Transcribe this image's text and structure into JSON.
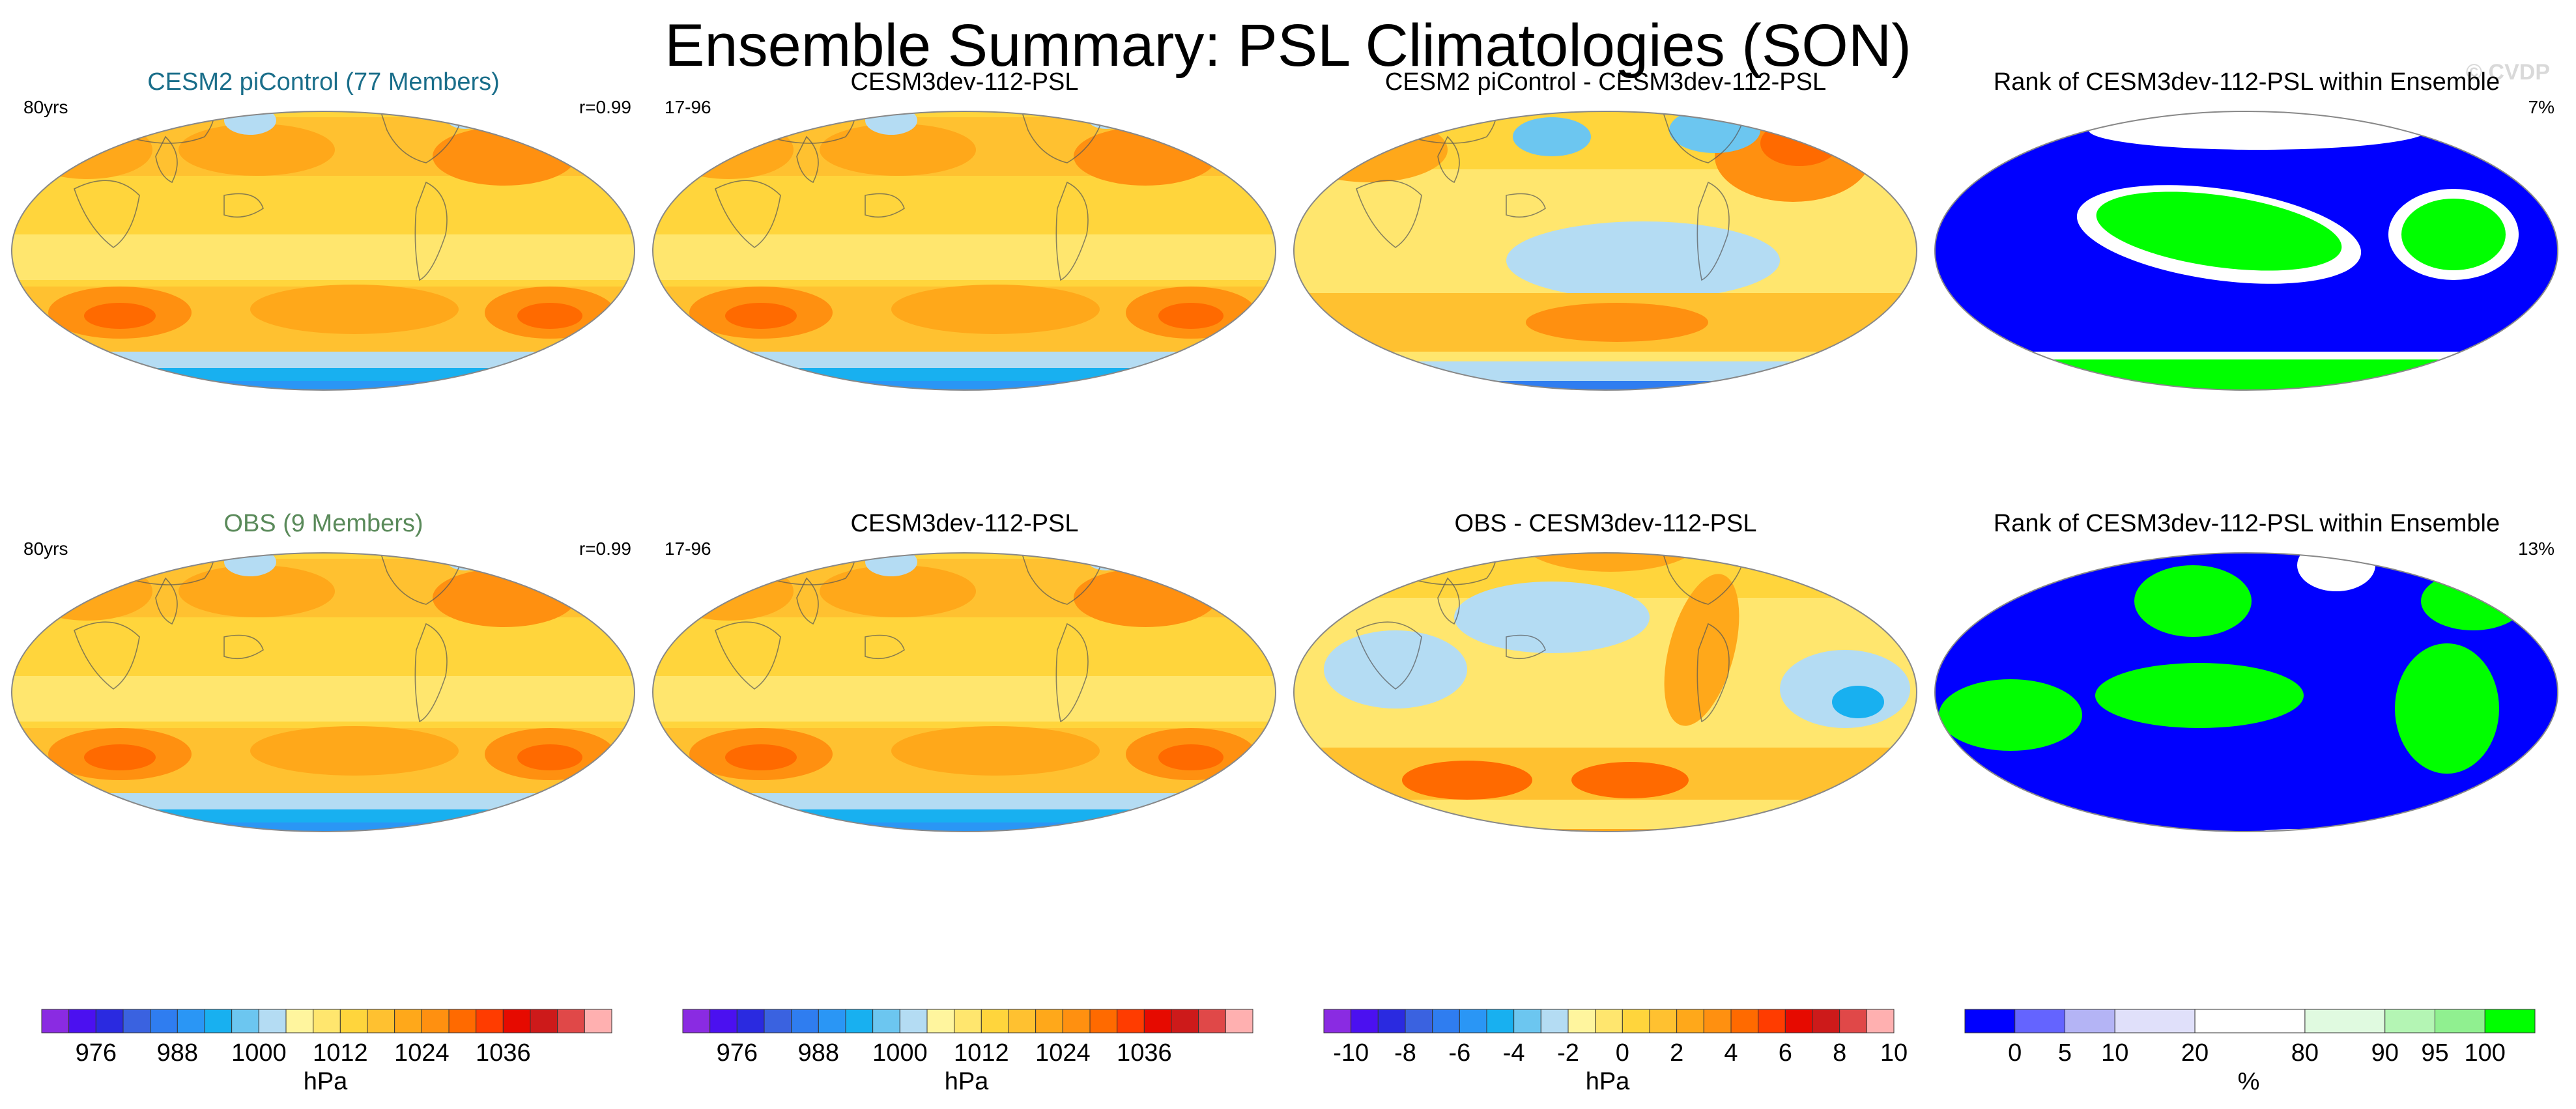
{
  "title": "Ensemble Summary: PSL Climatologies (SON)",
  "watermark": "© CVDP",
  "panels": [
    {
      "title": "CESM2 piControl (77 Members)",
      "title_color": "#1a6e8a",
      "left_note": "80yrs",
      "right_note": "r=0.99",
      "map_type": "abs",
      "variant": 1
    },
    {
      "title": "CESM3dev-112-PSL",
      "title_color": "#000000",
      "left_note": "17-96",
      "right_note": "",
      "map_type": "abs",
      "variant": 2
    },
    {
      "title": "CESM2 piControl - CESM3dev-112-PSL",
      "title_color": "#000000",
      "left_note": "",
      "right_note": "",
      "map_type": "diff",
      "variant": 1
    },
    {
      "title": "Rank of CESM3dev-112-PSL within Ensemble",
      "title_color": "#000000",
      "left_note": "",
      "right_note": "7%",
      "map_type": "rank",
      "variant": 1
    },
    {
      "title": "OBS (9 Members)",
      "title_color": "#5a8a5a",
      "left_note": "80yrs",
      "right_note": "r=0.99",
      "map_type": "abs",
      "variant": 3
    },
    {
      "title": "CESM3dev-112-PSL",
      "title_color": "#000000",
      "left_note": "17-96",
      "right_note": "",
      "map_type": "abs",
      "variant": 4
    },
    {
      "title": "OBS - CESM3dev-112-PSL",
      "title_color": "#000000",
      "left_note": "",
      "right_note": "",
      "map_type": "diff",
      "variant": 2
    },
    {
      "title": "Rank of CESM3dev-112-PSL within Ensemble",
      "title_color": "#000000",
      "left_note": "",
      "right_note": "13%",
      "map_type": "rank",
      "variant": 2
    }
  ],
  "colorbars": [
    {
      "ticks": [
        "976",
        "988",
        "1000",
        "1012",
        "1024",
        "1036"
      ],
      "unit": "hPa",
      "palette": "abs"
    },
    {
      "ticks": [
        "976",
        "988",
        "1000",
        "1012",
        "1024",
        "1036"
      ],
      "unit": "hPa",
      "palette": "abs"
    },
    {
      "ticks": [
        "-10",
        "-8",
        "-6",
        "-4",
        "-2",
        "0",
        "2",
        "4",
        "6",
        "8",
        "10"
      ],
      "unit": "hPa",
      "palette": "diff"
    },
    {
      "ticks": [
        "0",
        "5",
        "10",
        "20",
        "80",
        "90",
        "95",
        "100"
      ],
      "unit": "%",
      "palette": "rank"
    }
  ],
  "chart_data": {
    "type": "heatmap",
    "title": "Ensemble Summary: PSL Climatologies (SON)",
    "variable": "PSL",
    "season": "SON",
    "units": "hPa",
    "absolute_levels": [
      968,
      972,
      976,
      980,
      984,
      988,
      992,
      996,
      1000,
      1004,
      1008,
      1012,
      1016,
      1020,
      1024,
      1028,
      1032,
      1036,
      1040,
      1044
    ],
    "difference_levels": [
      -10,
      -9,
      -8,
      -7,
      -6,
      -5,
      -4,
      -3,
      -2,
      -1,
      0,
      1,
      2,
      3,
      4,
      5,
      6,
      7,
      8,
      9,
      10
    ],
    "rank_levels_percent": [
      0,
      5,
      10,
      20,
      80,
      90,
      95,
      100
    ],
    "pattern_correlation": [
      0.99,
      0.99
    ],
    "rank_percentile": [
      7,
      13
    ],
    "colors": {
      "abs": [
        "#8a2be2",
        "#4b10f0",
        "#2a2ae0",
        "#3a62e0",
        "#2f7df0",
        "#2a96f5",
        "#18b0f0",
        "#6cc6f0",
        "#b4dcf3",
        "#fff59e",
        "#ffe66e",
        "#ffd53c",
        "#ffc130",
        "#ffa81a",
        "#ff9010",
        "#ff6a00",
        "#ff3c00",
        "#e60a00",
        "#cd1a1a",
        "#e04848",
        "#ffb0b0"
      ],
      "diff": [
        "#8a2be2",
        "#4b10f0",
        "#2a2ae0",
        "#3a62e0",
        "#2f7df0",
        "#2a96f5",
        "#18b0f0",
        "#6cc6f0",
        "#b4dcf3",
        "#fff59e",
        "#ffe66e",
        "#ffd53c",
        "#ffc130",
        "#ffa81a",
        "#ff9010",
        "#ff6a00",
        "#ff3c00",
        "#e60a00",
        "#cd1a1a",
        "#e04848",
        "#ffb0b0"
      ],
      "rank": [
        "#0000ff",
        "#6464ff",
        "#b4b4f5",
        "#e0e0fa",
        "#ffffff",
        "#e0fae0",
        "#b4f5b4",
        "#90f090",
        "#00ff00"
      ]
    }
  }
}
